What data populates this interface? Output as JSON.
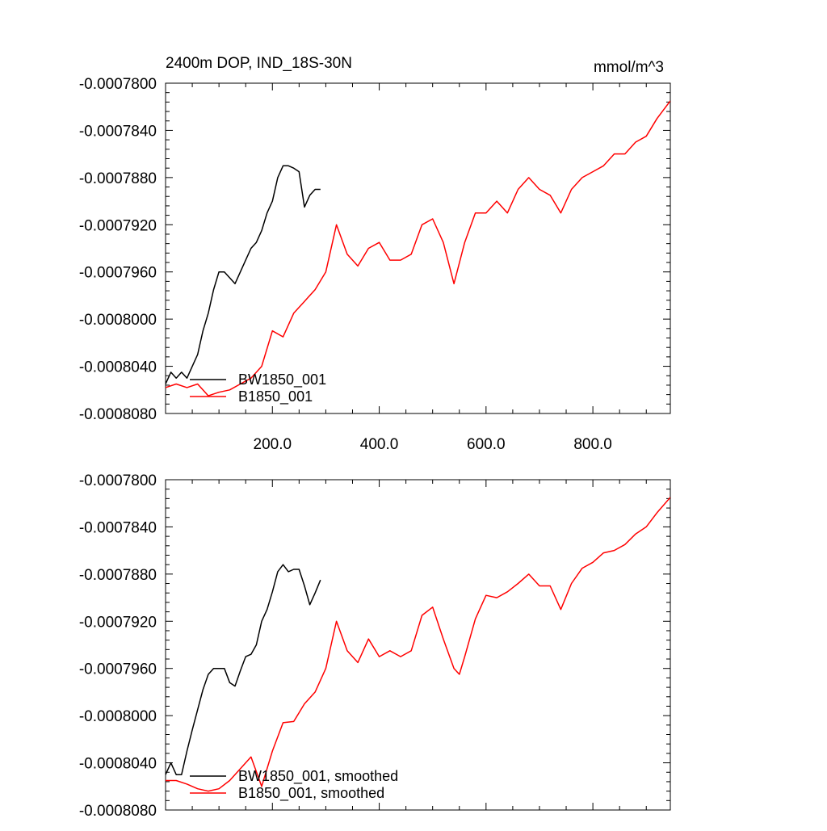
{
  "chart_data": [
    {
      "type": "line",
      "title": "2400m DOP, IND_18S-30N",
      "units": "mmol/m^3",
      "xlim": [
        0,
        945
      ],
      "ylim": [
        -0.000808,
        -0.00078
      ],
      "xticks": [
        200,
        400,
        600,
        800
      ],
      "xtick_labels": [
        "200.0",
        "400.0",
        "600.0",
        "800.0"
      ],
      "yticks": [
        -0.00078,
        -0.000784,
        -0.000788,
        -0.000792,
        -0.000796,
        -0.0008,
        -0.000804,
        -0.000808
      ],
      "ytick_labels": [
        "-0.0007800",
        "-0.0007840",
        "-0.0007880",
        "-0.0007920",
        "-0.0007960",
        "-0.0008000",
        "-0.0008040",
        "-0.0008080"
      ],
      "legend": "bottom-left",
      "series": [
        {
          "name": "BW1850_001",
          "color": "#000000",
          "x": [
            0,
            10,
            20,
            30,
            40,
            50,
            60,
            70,
            80,
            90,
            100,
            110,
            120,
            130,
            140,
            150,
            160,
            170,
            180,
            190,
            200,
            210,
            220,
            230,
            240,
            250,
            260,
            270,
            280,
            290
          ],
          "y": [
            -0.0008055,
            -0.0008045,
            -0.000805,
            -0.0008045,
            -0.000805,
            -0.000804,
            -0.000803,
            -0.000801,
            -0.0007995,
            -0.0007975,
            -0.000796,
            -0.000796,
            -0.0007965,
            -0.000797,
            -0.000796,
            -0.000795,
            -0.000794,
            -0.0007935,
            -0.0007925,
            -0.000791,
            -0.00079,
            -0.000788,
            -0.000787,
            -0.000787,
            -0.0007872,
            -0.0007875,
            -0.0007905,
            -0.0007895,
            -0.000789,
            -0.000789
          ]
        },
        {
          "name": "B1850_001",
          "color": "#ff0000",
          "x": [
            0,
            20,
            40,
            60,
            80,
            100,
            120,
            140,
            160,
            180,
            200,
            220,
            240,
            260,
            280,
            300,
            320,
            340,
            360,
            380,
            400,
            420,
            440,
            460,
            480,
            500,
            520,
            540,
            560,
            580,
            600,
            620,
            640,
            660,
            680,
            700,
            720,
            740,
            760,
            780,
            800,
            820,
            840,
            860,
            880,
            900,
            920,
            945
          ],
          "y": [
            -0.0008058,
            -0.0008055,
            -0.0008058,
            -0.0008055,
            -0.0008065,
            -0.0008062,
            -0.000806,
            -0.0008055,
            -0.000805,
            -0.000804,
            -0.000801,
            -0.0008015,
            -0.0007995,
            -0.0007985,
            -0.0007975,
            -0.000796,
            -0.000792,
            -0.0007945,
            -0.0007955,
            -0.000794,
            -0.0007935,
            -0.000795,
            -0.000795,
            -0.0007945,
            -0.000792,
            -0.0007915,
            -0.0007935,
            -0.000797,
            -0.0007935,
            -0.000791,
            -0.000791,
            -0.00079,
            -0.000791,
            -0.000789,
            -0.000788,
            -0.000789,
            -0.0007895,
            -0.000791,
            -0.000789,
            -0.000788,
            -0.0007875,
            -0.000787,
            -0.000786,
            -0.000786,
            -0.000785,
            -0.0007845,
            -0.000783,
            -0.0007815
          ]
        }
      ]
    },
    {
      "type": "line",
      "title": "",
      "units": "",
      "xlim": [
        0,
        945
      ],
      "ylim": [
        -0.000808,
        -0.00078
      ],
      "xticks": [
        200,
        400,
        600,
        800
      ],
      "xtick_labels": [],
      "yticks": [
        -0.00078,
        -0.000784,
        -0.000788,
        -0.000792,
        -0.000796,
        -0.0008,
        -0.000804,
        -0.000808
      ],
      "ytick_labels": [
        "-0.0007800",
        "-0.0007840",
        "-0.0007880",
        "-0.0007920",
        "-0.0007960",
        "-0.0008000",
        "-0.0008040",
        "-0.0008080"
      ],
      "legend": "bottom-left",
      "series": [
        {
          "name": "BW1850_001, smoothed",
          "color": "#000000",
          "x": [
            0,
            10,
            20,
            30,
            40,
            50,
            60,
            70,
            80,
            90,
            100,
            110,
            120,
            130,
            140,
            150,
            160,
            170,
            180,
            190,
            200,
            210,
            220,
            230,
            240,
            250,
            260,
            270,
            280,
            290
          ],
          "y": [
            -0.000805,
            -0.000804,
            -0.000805,
            -0.000805,
            -0.000803,
            -0.0008012,
            -0.0007995,
            -0.0007978,
            -0.0007965,
            -0.000796,
            -0.000796,
            -0.000796,
            -0.0007972,
            -0.0007975,
            -0.0007962,
            -0.000795,
            -0.0007948,
            -0.000794,
            -0.000792,
            -0.000791,
            -0.0007895,
            -0.0007878,
            -0.0007872,
            -0.0007878,
            -0.0007876,
            -0.0007876,
            -0.000789,
            -0.0007906,
            -0.0007896,
            -0.0007885
          ]
        },
        {
          "name": "B1850_001, smoothed",
          "color": "#ff0000",
          "x": [
            0,
            20,
            40,
            60,
            80,
            100,
            120,
            140,
            160,
            180,
            200,
            220,
            240,
            260,
            280,
            300,
            310,
            320,
            340,
            360,
            380,
            400,
            420,
            440,
            460,
            480,
            500,
            520,
            540,
            550,
            560,
            580,
            600,
            620,
            640,
            660,
            680,
            700,
            720,
            740,
            760,
            780,
            800,
            820,
            840,
            860,
            880,
            900,
            920,
            945
          ],
          "y": [
            -0.0008055,
            -0.0008055,
            -0.0008058,
            -0.0008062,
            -0.0008064,
            -0.0008062,
            -0.0008055,
            -0.0008045,
            -0.0008035,
            -0.000806,
            -0.000803,
            -0.0008006,
            -0.0008005,
            -0.000799,
            -0.000798,
            -0.000796,
            -0.000794,
            -0.000792,
            -0.0007945,
            -0.0007955,
            -0.0007935,
            -0.000795,
            -0.0007945,
            -0.000795,
            -0.0007945,
            -0.0007915,
            -0.0007908,
            -0.0007935,
            -0.000796,
            -0.0007965,
            -0.000795,
            -0.0007918,
            -0.0007898,
            -0.00079,
            -0.0007895,
            -0.0007888,
            -0.000788,
            -0.000789,
            -0.000789,
            -0.000791,
            -0.0007888,
            -0.0007875,
            -0.000787,
            -0.0007862,
            -0.000786,
            -0.0007855,
            -0.0007846,
            -0.000784,
            -0.0007828,
            -0.0007815
          ]
        }
      ]
    }
  ]
}
